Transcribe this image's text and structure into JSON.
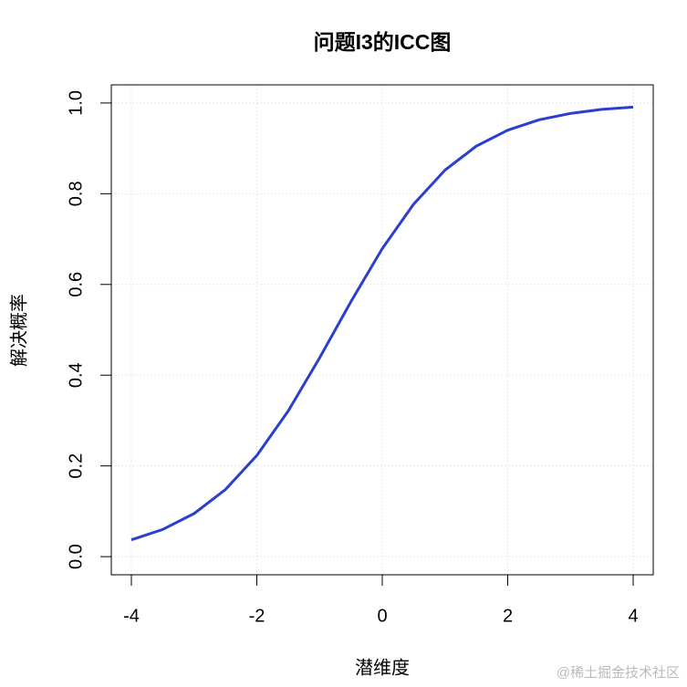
{
  "chart_data": {
    "type": "line",
    "title": "问题I3的ICC图",
    "x_label": "潜维度",
    "y_label": "解决概率",
    "series": [
      {
        "color": "#2a3fd0",
        "x": [
          -4,
          -3.5,
          -3,
          -2.5,
          -2,
          -1.5,
          -1,
          -0.5,
          0,
          0.5,
          1,
          1.5,
          2,
          2.5,
          3,
          3.5,
          4
        ],
        "values": [
          0.037,
          0.06,
          0.095,
          0.148,
          0.223,
          0.321,
          0.438,
          0.562,
          0.679,
          0.777,
          0.852,
          0.905,
          0.94,
          0.963,
          0.977,
          0.986,
          0.991
        ]
      }
    ],
    "xlim": [
      -4.32,
      4.32
    ],
    "ylim": [
      -0.04,
      1.04
    ],
    "xticks": [
      -4,
      -2,
      0,
      2,
      4
    ],
    "yticks": [
      {
        "value": 0,
        "label": "0.0"
      },
      {
        "value": 0.2,
        "label": "0.2"
      },
      {
        "value": 0.4,
        "label": "0.4"
      },
      {
        "value": 0.6,
        "label": "0.6"
      },
      {
        "value": 0.8,
        "label": "0.8"
      },
      {
        "value": 1,
        "label": "1.0"
      }
    ],
    "grid": true,
    "watermark": "@稀土掘金技术社区"
  }
}
